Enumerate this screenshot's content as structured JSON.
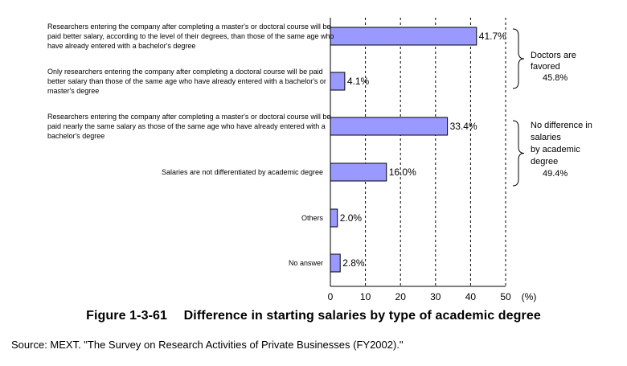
{
  "chart_data": {
    "type": "bar",
    "orientation": "horizontal",
    "categories": [
      [
        "Researchers entering the company after completing a master's or doctoral course will be",
        "paid better salary, according to the level of their degrees, than those of the same age who",
        "have already entered with a bachelor's degree"
      ],
      [
        "Only researchers entering the company after completing a doctoral course will be paid",
        "better salary than those of the same age who have already entered with a bachelor's or",
        "master's degree"
      ],
      [
        "Researchers entering the company after completing a master's or doctoral course will be",
        "paid nearly the same salary as those of the same age who have already entered with a",
        "bachelor's degree"
      ],
      [
        "Salaries are not differentiated by academic degree"
      ],
      [
        "Others"
      ],
      [
        "No answer"
      ]
    ],
    "values": [
      41.7,
      4.1,
      33.4,
      16.0,
      2.0,
      2.8
    ],
    "value_labels": [
      "41.7%",
      "4.1%",
      "33.4%",
      "16.0%",
      "2.0%",
      "2.8%"
    ],
    "xlim": [
      0,
      50
    ],
    "xticks": [
      "0",
      "10",
      "20",
      "30",
      "40",
      "50"
    ],
    "xunit": "(%)",
    "grid": true,
    "bar_color": "#9999ff",
    "groups": [
      {
        "lines": [
          "Doctors are",
          "favored",
          "45.8%"
        ]
      },
      {
        "lines": [
          "No difference in",
          "salaries",
          "by academic",
          "degree",
          "49.4%"
        ]
      }
    ]
  },
  "caption": "Figure 1-3-61  Difference in starting salaries by type of academic degree",
  "source": "Source: MEXT. \"The Survey on Research Activities of Private Businesses (FY2002).\""
}
